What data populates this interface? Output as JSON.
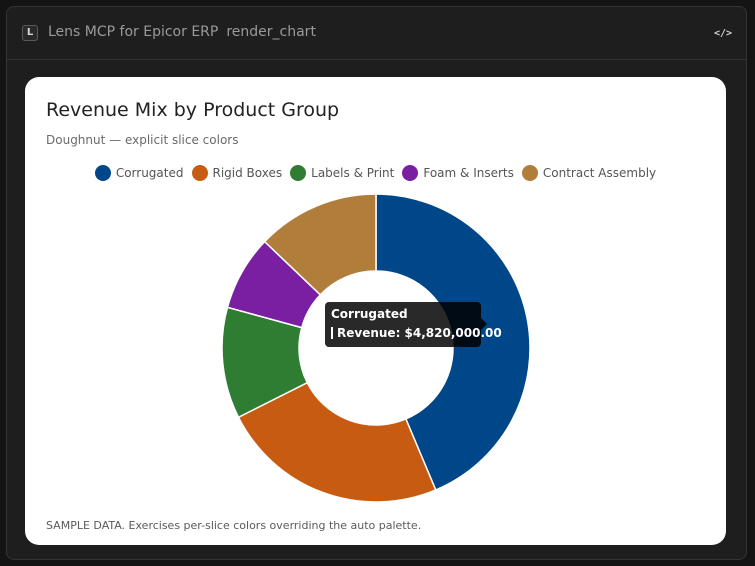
{
  "app": {
    "icon_letter": "L",
    "title": "Lens MCP for Epicor ERP",
    "tool_name": "render_chart",
    "code_icon": "</>"
  },
  "tooltip": {
    "title": "Corrugated",
    "label": "Revenue: $4,820,000.00"
  },
  "footnote": "SAMPLE DATA. Exercises per-slice colors overriding the auto palette.",
  "chart_data": {
    "type": "pie",
    "variant": "doughnut",
    "title": "Revenue Mix by Product Group",
    "subtitle": "Doughnut — explicit slice colors",
    "legend_position": "top",
    "categories": [
      "Corrugated",
      "Rigid Boxes",
      "Labels & Print",
      "Foam & Inserts",
      "Contract Assembly"
    ],
    "series": [
      {
        "name": "Revenue",
        "values": [
          4820000,
          2640000,
          1290000,
          870000,
          1420000
        ]
      }
    ],
    "colors": [
      "#00478a",
      "#c75b12",
      "#2e7d32",
      "#7b1fa2",
      "#b07d3a"
    ]
  }
}
